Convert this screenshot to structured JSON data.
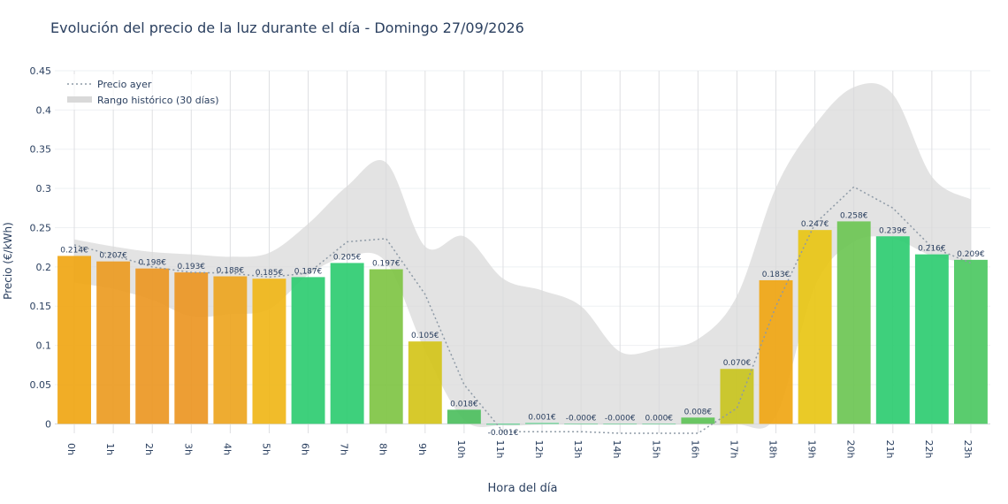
{
  "title": "Evolución del precio de la luz durante el día - Domingo 27/09/2026",
  "chart_data": {
    "type": "bar",
    "xlabel": "Hora del día",
    "ylabel": "Precio (€/kWh)",
    "ylim": [
      -0.012,
      0.45
    ],
    "yticks": [
      0,
      0.05,
      0.1,
      0.15,
      0.2,
      0.25,
      0.3,
      0.35,
      0.4,
      0.45
    ],
    "ytick_labels": [
      "0",
      "0.05",
      "0.1",
      "0.15",
      "0.2",
      "0.25",
      "0.3",
      "0.35",
      "0.4",
      "0.45"
    ],
    "categories": [
      "0h",
      "1h",
      "2h",
      "3h",
      "4h",
      "5h",
      "6h",
      "7h",
      "8h",
      "9h",
      "10h",
      "11h",
      "12h",
      "13h",
      "14h",
      "15h",
      "16h",
      "17h",
      "18h",
      "19h",
      "20h",
      "21h",
      "22h",
      "23h"
    ],
    "values": [
      0.214,
      0.207,
      0.198,
      0.193,
      0.188,
      0.185,
      0.187,
      0.205,
      0.197,
      0.105,
      0.018,
      -0.001,
      0.001,
      -0.0,
      -0.0,
      0.0,
      0.008,
      0.07,
      0.183,
      0.247,
      0.258,
      0.239,
      0.216,
      0.209
    ],
    "labels": [
      "0.214€",
      "0.207€",
      "0.198€",
      "0.193€",
      "0.188€",
      "0.185€",
      "0.187€",
      "0.205€",
      "0.197€",
      "0.105€",
      "0.018€",
      "-0.001€",
      "0.001€",
      "-0.000€",
      "-0.000€",
      "0.000€",
      "0.008€",
      "0.070€",
      "0.183€",
      "0.247€",
      "0.258€",
      "0.239€",
      "0.216€",
      "0.209€"
    ],
    "bar_colors": [
      "#f0a614",
      "#ec9b22",
      "#ec9723",
      "#ec9623",
      "#eda520",
      "#f0b618",
      "#2ecc71",
      "#2ecc71",
      "#7fc444",
      "#d4c41a",
      "#4dbf5e",
      "#2ecc71",
      "#2ecc71",
      "#2ecc71",
      "#2ecc71",
      "#2ecc71",
      "#5fc358",
      "#c9c420",
      "#f0a614",
      "#e8c515",
      "#6cc554",
      "#2ecc71",
      "#2ecc71",
      "#4cc862"
    ],
    "series": [
      {
        "name": "Precio ayer",
        "style": "dotted",
        "color": "#8e9aa6",
        "values": [
          0.228,
          0.215,
          0.2,
          0.193,
          0.192,
          0.187,
          0.192,
          0.232,
          0.236,
          0.165,
          0.05,
          -0.01,
          -0.01,
          -0.01,
          -0.012,
          -0.012,
          -0.012,
          0.02,
          0.15,
          0.255,
          0.302,
          0.275,
          0.225,
          0.205
        ]
      },
      {
        "name": "Rango histórico (30 días)",
        "style": "band",
        "color": "#d9d9d9",
        "upper": [
          0.235,
          0.226,
          0.219,
          0.216,
          0.213,
          0.218,
          0.255,
          0.303,
          0.333,
          0.226,
          0.239,
          0.185,
          0.17,
          0.15,
          0.092,
          0.096,
          0.108,
          0.163,
          0.301,
          0.381,
          0.429,
          0.42,
          0.315,
          0.286
        ],
        "lower": [
          0.18,
          0.172,
          0.158,
          0.137,
          0.14,
          0.146,
          0.19,
          0.213,
          0.206,
          0.093,
          0.005,
          -0.002,
          -0.001,
          -0.001,
          -0.001,
          -0.001,
          -0.001,
          -0.001,
          0.01,
          0.175,
          0.232,
          0.236,
          0.214,
          0.205
        ]
      }
    ],
    "legend_position": "top-left",
    "grid": true
  }
}
